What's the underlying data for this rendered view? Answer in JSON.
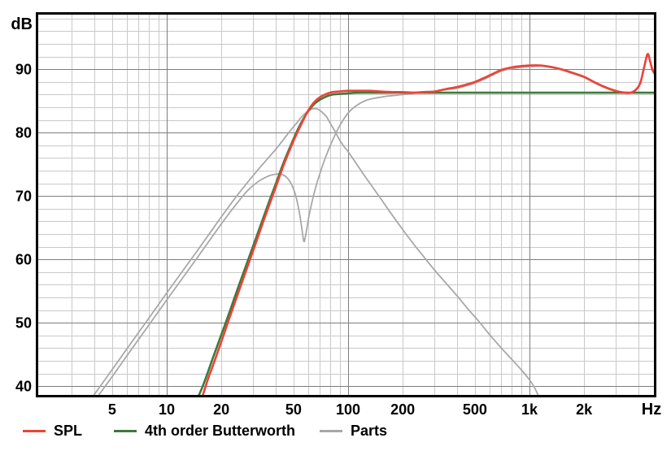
{
  "chart": {
    "y_unit": "dB",
    "x_unit": "Hz",
    "background": "#ffffff",
    "grid": {
      "minor_color": "#c9c9c9",
      "major_color": "#7d7d7d",
      "border_color": "#000000"
    },
    "text_color": "#000000"
  },
  "chart_data": {
    "type": "line",
    "title": "",
    "xlabel": "Hz",
    "ylabel": "dB",
    "x_scale": "log",
    "xlim": [
      2,
      5000
    ],
    "ylim": [
      38.3,
      99
    ],
    "grid": "on",
    "legend_position": "bottom-left",
    "y_major_ticks": [
      90,
      80,
      70,
      60,
      50,
      40
    ],
    "y_minor_step": 2,
    "x_ticks": [
      {
        "value": 5,
        "label": "5"
      },
      {
        "value": 10,
        "label": "10"
      },
      {
        "value": 20,
        "label": "20"
      },
      {
        "value": 50,
        "label": "50"
      },
      {
        "value": 100,
        "label": "100"
      },
      {
        "value": 200,
        "label": "200"
      },
      {
        "value": 500,
        "label": "500"
      },
      {
        "value": 1000,
        "label": "1k"
      },
      {
        "value": 2000,
        "label": "2k"
      }
    ],
    "x_major_gridlines": [
      10,
      100,
      1000
    ],
    "series": [
      {
        "name": "SPL",
        "color": "#ee4237",
        "stroke_width": 2.6,
        "points": [
          [
            15.7,
            38.3
          ],
          [
            17,
            41.4
          ],
          [
            18,
            43.3
          ],
          [
            20,
            47.0
          ],
          [
            22,
            50.5
          ],
          [
            25,
            55.0
          ],
          [
            28,
            59.0
          ],
          [
            31,
            62.6
          ],
          [
            34,
            65.9
          ],
          [
            37,
            68.8
          ],
          [
            40,
            71.5
          ],
          [
            44,
            74.8
          ],
          [
            48,
            77.5
          ],
          [
            52,
            79.8
          ],
          [
            56,
            81.7
          ],
          [
            60,
            83.4
          ],
          [
            65,
            84.8
          ],
          [
            70,
            85.6
          ],
          [
            76,
            86.1
          ],
          [
            82,
            86.4
          ],
          [
            90,
            86.5
          ],
          [
            100,
            86.6
          ],
          [
            115,
            86.6
          ],
          [
            130,
            86.6
          ],
          [
            150,
            86.5
          ],
          [
            175,
            86.4
          ],
          [
            200,
            86.4
          ],
          [
            230,
            86.3
          ],
          [
            260,
            86.4
          ],
          [
            300,
            86.5
          ],
          [
            350,
            86.9
          ],
          [
            400,
            87.2
          ],
          [
            450,
            87.6
          ],
          [
            500,
            88.0
          ],
          [
            560,
            88.6
          ],
          [
            630,
            89.3
          ],
          [
            700,
            89.9
          ],
          [
            800,
            90.3
          ],
          [
            900,
            90.5
          ],
          [
            1000,
            90.6
          ],
          [
            1150,
            90.6
          ],
          [
            1300,
            90.4
          ],
          [
            1500,
            90.0
          ],
          [
            1700,
            89.5
          ],
          [
            2000,
            88.8
          ],
          [
            2300,
            87.9
          ],
          [
            2600,
            87.2
          ],
          [
            2900,
            86.7
          ],
          [
            3200,
            86.4
          ],
          [
            3600,
            86.3
          ],
          [
            3900,
            86.9
          ],
          [
            4100,
            88.0
          ],
          [
            4300,
            90.5
          ],
          [
            4480,
            92.4
          ],
          [
            4620,
            91.3
          ],
          [
            4750,
            90.0
          ],
          [
            4900,
            89.3
          ],
          [
            5000,
            89.2
          ]
        ]
      },
      {
        "name": "4th order Butterworth",
        "color": "#3c7a3c",
        "stroke_width": 2.6,
        "points": [
          [
            14.9,
            38.3
          ],
          [
            16,
            40.4
          ],
          [
            18,
            44.5
          ],
          [
            20,
            48.1
          ],
          [
            22,
            51.4
          ],
          [
            25,
            55.9
          ],
          [
            28,
            59.8
          ],
          [
            31,
            63.3
          ],
          [
            34,
            66.5
          ],
          [
            37,
            69.4
          ],
          [
            40,
            72.0
          ],
          [
            44,
            75.2
          ],
          [
            48,
            77.8
          ],
          [
            52,
            80.1
          ],
          [
            56,
            81.9
          ],
          [
            60,
            83.3
          ],
          [
            65,
            84.5
          ],
          [
            70,
            85.2
          ],
          [
            76,
            85.7
          ],
          [
            82,
            86.0
          ],
          [
            90,
            86.1
          ],
          [
            100,
            86.2
          ],
          [
            120,
            86.3
          ],
          [
            200,
            86.3
          ],
          [
            500,
            86.3
          ],
          [
            1000,
            86.3
          ],
          [
            2000,
            86.3
          ],
          [
            5000,
            86.3
          ]
        ]
      },
      {
        "name": "Parts",
        "color": "#a8a8a8",
        "stroke_width": 1.8,
        "curves": [
          [
            [
              3.9,
              38.3
            ],
            [
              5,
              42.6
            ],
            [
              6,
              45.8
            ],
            [
              8,
              50.8
            ],
            [
              10,
              54.7
            ],
            [
              13,
              59.2
            ],
            [
              16,
              62.8
            ],
            [
              20,
              66.7
            ],
            [
              24,
              69.8
            ],
            [
              28,
              72.2
            ],
            [
              32,
              74.2
            ],
            [
              36,
              75.9
            ],
            [
              40,
              77.4
            ],
            [
              44,
              78.9
            ],
            [
              48,
              80.3
            ],
            [
              52,
              81.5
            ],
            [
              56,
              82.6
            ],
            [
              60,
              83.4
            ],
            [
              63,
              83.7
            ],
            [
              66,
              83.8
            ],
            [
              69,
              83.6
            ],
            [
              72,
              83.2
            ],
            [
              76,
              82.5
            ],
            [
              80,
              81.4
            ],
            [
              85,
              80.1
            ],
            [
              90,
              78.8
            ],
            [
              95,
              77.8
            ],
            [
              100,
              77.0
            ],
            [
              108,
              75.6
            ],
            [
              116,
              74.3
            ],
            [
              126,
              72.8
            ],
            [
              138,
              71.2
            ],
            [
              152,
              69.5
            ],
            [
              170,
              67.5
            ],
            [
              200,
              64.7
            ],
            [
              230,
              62.4
            ],
            [
              260,
              60.5
            ],
            [
              300,
              58.3
            ],
            [
              350,
              56.1
            ],
            [
              400,
              54.2
            ],
            [
              460,
              52.1
            ],
            [
              530,
              50.1
            ],
            [
              600,
              48.2
            ],
            [
              700,
              46.0
            ],
            [
              800,
              44.2
            ],
            [
              900,
              42.6
            ],
            [
              1000,
              41.0
            ],
            [
              1060,
              39.9
            ],
            [
              1130,
              38.3
            ]
          ],
          [
            [
              4.15,
              38.3
            ],
            [
              5,
              41.5
            ],
            [
              6,
              44.7
            ],
            [
              8,
              49.7
            ],
            [
              10,
              53.6
            ],
            [
              13,
              58.1
            ],
            [
              16,
              61.7
            ],
            [
              20,
              65.6
            ],
            [
              24,
              68.6
            ],
            [
              28,
              70.9
            ],
            [
              32,
              72.3
            ],
            [
              36,
              73.1
            ],
            [
              39,
              73.4
            ],
            [
              42,
              73.5
            ],
            [
              44,
              73.3
            ],
            [
              46,
              72.9
            ],
            [
              48,
              72.2
            ],
            [
              50,
              71.1
            ],
            [
              52,
              69.5
            ],
            [
              54,
              67.2
            ],
            [
              55.5,
              65.0
            ],
            [
              56.5,
              63.4
            ],
            [
              57.2,
              62.8
            ],
            [
              58,
              63.4
            ],
            [
              59.5,
              65.2
            ],
            [
              61,
              67.0
            ],
            [
              63,
              68.9
            ],
            [
              66,
              71.2
            ],
            [
              70,
              73.6
            ],
            [
              74,
              75.6
            ],
            [
              78,
              77.3
            ],
            [
              83,
              79.1
            ],
            [
              88,
              80.6
            ],
            [
              94,
              82.0
            ],
            [
              100,
              83.1
            ],
            [
              108,
              84.0
            ],
            [
              116,
              84.6
            ],
            [
              126,
              85.1
            ],
            [
              138,
              85.4
            ],
            [
              152,
              85.6
            ],
            [
              170,
              85.8
            ],
            [
              200,
              86.0
            ],
            [
              230,
              86.2
            ],
            [
              260,
              86.3
            ],
            [
              300,
              86.5
            ],
            [
              350,
              86.8
            ],
            [
              400,
              87.0
            ],
            [
              450,
              87.4
            ],
            [
              500,
              87.8
            ],
            [
              560,
              88.4
            ],
            [
              630,
              89.1
            ],
            [
              700,
              89.7
            ],
            [
              800,
              90.1
            ],
            [
              900,
              90.3
            ],
            [
              1000,
              90.4
            ],
            [
              1150,
              90.5
            ],
            [
              1300,
              90.3
            ],
            [
              1500,
              89.9
            ],
            [
              1700,
              89.4
            ],
            [
              2000,
              88.7
            ],
            [
              2300,
              87.8
            ],
            [
              2600,
              87.1
            ],
            [
              2900,
              86.6
            ],
            [
              3200,
              86.3
            ],
            [
              3600,
              86.2
            ],
            [
              3900,
              86.8
            ],
            [
              4100,
              87.9
            ],
            [
              4300,
              90.4
            ],
            [
              4480,
              92.3
            ],
            [
              4620,
              91.2
            ],
            [
              4750,
              89.9
            ],
            [
              4900,
              89.2
            ],
            [
              5000,
              89.1
            ]
          ]
        ]
      }
    ]
  },
  "legend": {
    "items": [
      "SPL",
      "4th order Butterworth",
      "Parts"
    ]
  }
}
